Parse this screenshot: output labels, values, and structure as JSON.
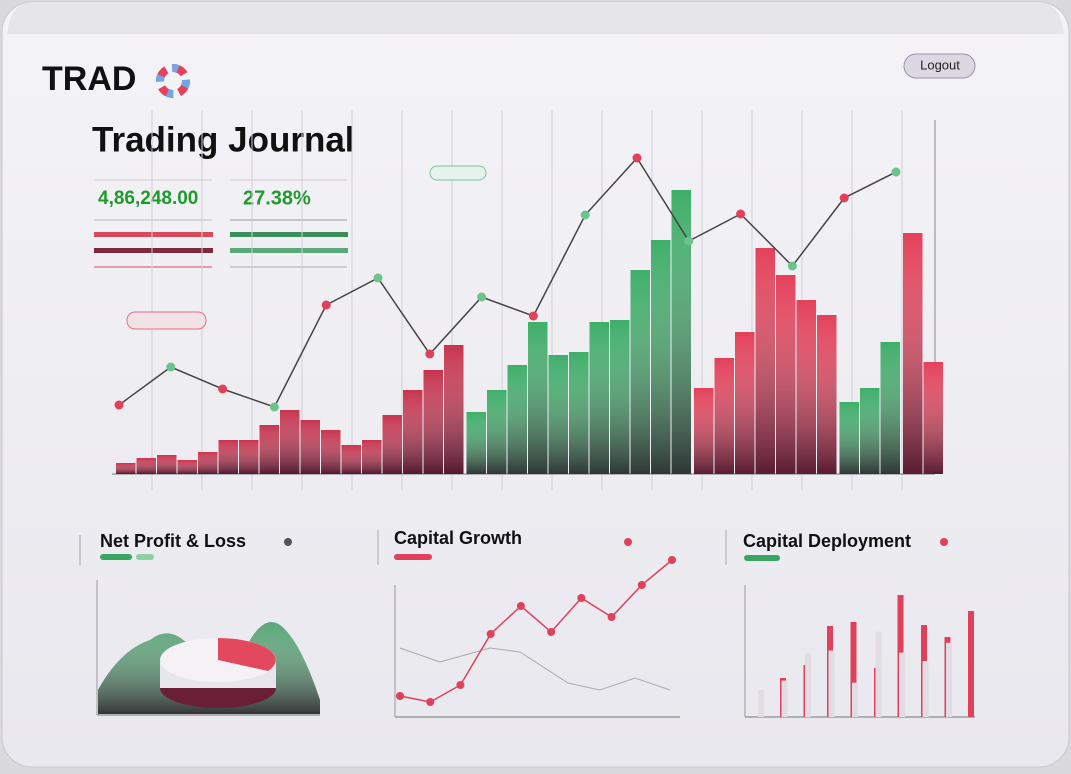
{
  "header": {
    "brand": "TRAD",
    "logout": "Logout"
  },
  "journal": {
    "title": "Trading Journal",
    "balance": "4,86,248.00",
    "return": "27.38%",
    "bar_groups": [
      {
        "color": "#c8344f",
        "values": [
          11,
          16,
          19,
          14,
          22,
          34,
          34,
          49,
          64,
          54,
          44,
          29,
          34,
          59,
          84,
          104,
          129
        ]
      },
      {
        "color": "#3fae6a",
        "values": [
          62,
          84,
          109,
          152,
          119,
          122,
          152,
          154,
          204,
          234,
          284
        ]
      },
      {
        "color": "#e4415a",
        "values": [
          86,
          116,
          142,
          226,
          199,
          174,
          159
        ]
      },
      {
        "color": "#3fae6a",
        "values": [
          72,
          86,
          132
        ]
      },
      {
        "color": "#e4415a",
        "values": [
          241,
          112
        ]
      }
    ],
    "line": {
      "color": "#444",
      "values": [
        69,
        107,
        85,
        67,
        169,
        196,
        120,
        177,
        158,
        259,
        316,
        233,
        260,
        208,
        276,
        302
      ]
    }
  },
  "panels": [
    {
      "title": "Net Profit & Loss"
    },
    {
      "title": "Capital Growth",
      "color": "#e0405a",
      "values": [
        21,
        15,
        32,
        83,
        111,
        85,
        119,
        100,
        132,
        157
      ]
    },
    {
      "title": "Capital Deployment",
      "color": "#e0405a",
      "values": [
        39,
        52,
        91,
        95,
        49,
        122,
        92,
        80,
        106
      ]
    }
  ]
}
